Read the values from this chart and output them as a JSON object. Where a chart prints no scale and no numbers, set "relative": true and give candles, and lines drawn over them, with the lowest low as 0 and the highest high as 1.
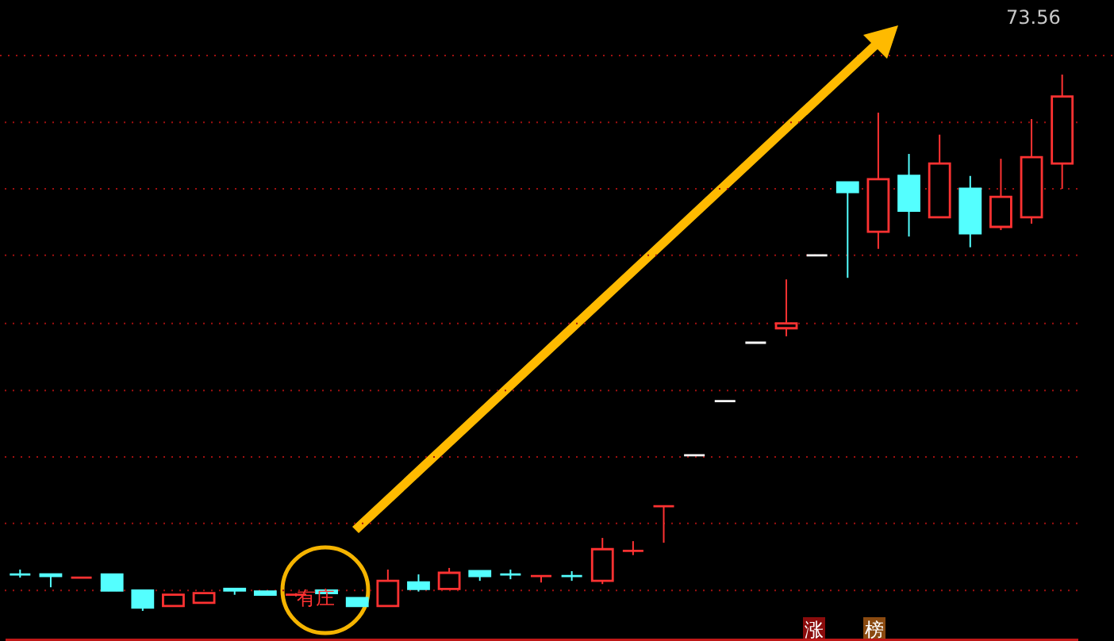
{
  "chart_data": {
    "type": "candlestick",
    "relative": true,
    "ref_lines": [
      {
        "axis": "y",
        "value": 0.911,
        "color": "#a01010",
        "line_style": "dotted"
      },
      {
        "axis": "y",
        "value": 0.787,
        "color": "#a01010",
        "line_style": "dotted"
      },
      {
        "axis": "y",
        "value": 0.663,
        "color": "#a01010",
        "line_style": "dotted"
      },
      {
        "axis": "y",
        "value": 0.536,
        "color": "#a01010",
        "line_style": "dotted"
      },
      {
        "axis": "y",
        "value": 0.411,
        "color": "#a01010",
        "line_style": "dotted"
      },
      {
        "axis": "y",
        "value": 0.287,
        "color": "#a01010",
        "line_style": "dotted"
      },
      {
        "axis": "y",
        "value": 0.163,
        "color": "#a01010",
        "line_style": "dotted"
      },
      {
        "axis": "y",
        "value": 0.038,
        "color": "#a01010",
        "line_style": "dotted"
      }
    ],
    "categories": [
      null,
      null,
      null,
      null,
      null,
      null,
      null,
      null,
      null,
      null,
      null,
      null,
      null,
      null,
      null,
      null,
      null,
      null,
      null,
      null,
      null,
      null,
      null,
      null,
      null,
      null,
      null,
      null,
      null,
      null,
      null,
      null,
      null,
      null,
      null
    ],
    "ohlc": [
      [
        0.068,
        0.077,
        0.062,
        0.068
      ],
      [
        0.068,
        0.068,
        0.044,
        0.065
      ],
      [
        0.062,
        0.062,
        0.062,
        0.062
      ],
      [
        0.068,
        0.068,
        0.038,
        0.038
      ],
      [
        0.038,
        0.038,
        0,
        0.006
      ],
      [
        0.009,
        0.03,
        0.009,
        0.03
      ],
      [
        0.015,
        0.033,
        0.015,
        0.033
      ],
      [
        0.041,
        0.041,
        0.03,
        0.038
      ],
      [
        0.036,
        0.036,
        0.03,
        0.03
      ],
      [
        0.03,
        0.033,
        0.027,
        0.03
      ],
      [
        0.038,
        0.038,
        0.033,
        0.033
      ],
      [
        0.024,
        0.024,
        0.009,
        0.009
      ],
      [
        0.009,
        0.077,
        0.009,
        0.056
      ],
      [
        0.053,
        0.068,
        0.036,
        0.041
      ],
      [
        0.041,
        0.08,
        0.041,
        0.071
      ],
      [
        0.074,
        0.074,
        0.056,
        0.065
      ],
      [
        0.068,
        0.077,
        0.059,
        0.068
      ],
      [
        0.065,
        0.065,
        0.053,
        0.065
      ],
      [
        0.065,
        0.074,
        0.056,
        0.065
      ],
      [
        0.056,
        0.136,
        0.05,
        0.115
      ],
      [
        0.112,
        0.13,
        0.104,
        0.112
      ],
      [
        0.195,
        0.195,
        0.127,
        0.195
      ],
      [
        0.29,
        0.29,
        0.29,
        0.29
      ],
      [
        0.391,
        0.391,
        0.391,
        0.391
      ],
      [
        0.5,
        0.5,
        0.5,
        0.5
      ],
      [
        0.527,
        0.618,
        0.512,
        0.536
      ],
      [
        0.663,
        0.663,
        0.663,
        0.663
      ],
      [
        0.799,
        0.799,
        0.621,
        0.781
      ],
      [
        0.707,
        0.929,
        0.675,
        0.805
      ],
      [
        0.811,
        0.852,
        0.698,
        0.746
      ],
      [
        0.734,
        0.888,
        0.734,
        0.834
      ],
      [
        0.787,
        0.811,
        0.678,
        0.704
      ],
      [
        0.716,
        0.843,
        0.71,
        0.772
      ],
      [
        0.734,
        0.917,
        0.722,
        0.846
      ],
      [
        0.834,
        1,
        0.787,
        0.959
      ]
    ],
    "colors": [
      "#54ffff",
      "#54ffff",
      "#ff3232",
      "#54ffff",
      "#54ffff",
      "#ff3232",
      "#ff3232",
      "#54ffff",
      "#54ffff",
      "#ff3232",
      "#54ffff",
      "#54ffff",
      "#ff3232",
      "#54ffff",
      "#ff3232",
      "#54ffff",
      "#54ffff",
      "#ff3232",
      "#54ffff",
      "#ff3232",
      "#ff3232",
      "#ff3232",
      "#ffffff",
      "#ffffff",
      "#ffffff",
      "#ff3232",
      "#ffffff",
      "#54ffff",
      "#ff3232",
      "#54ffff",
      "#ff3232",
      "#54ffff",
      "#ff3232",
      "#ff3232",
      "#ff3232"
    ],
    "annotations": [
      "73.56",
      "有庄",
      "涨",
      "榜"
    ]
  }
}
